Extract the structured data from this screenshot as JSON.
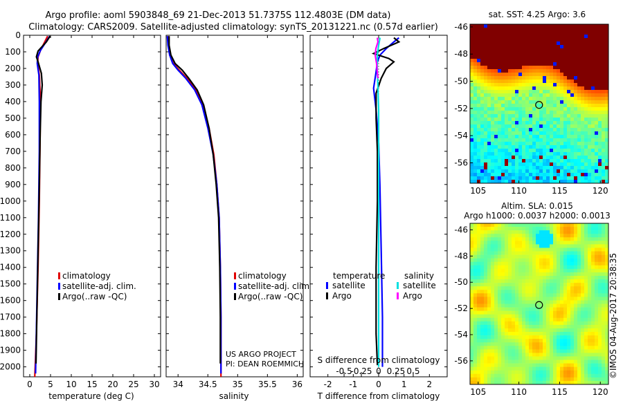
{
  "title_line1": "Argo profile: aoml 5903848_69 21-Dec-2013 51.7375S 112.4803E (DM data)",
  "title_line2": "Climatology: CARS2009. Satellite-adjusted climatology: synTS_20131221.nc (0.57d earlier)",
  "colors": {
    "climatology": "#e00000",
    "satellite": "#0000ff",
    "argo": "#000000",
    "satellite_s": "#00e0e0",
    "argo_s": "#ff00ff"
  },
  "chart_data": [
    {
      "type": "line",
      "id": "temperature",
      "xlabel": "temperature (deg C)",
      "xlim": [
        -1.5,
        31.5
      ],
      "ylim": [
        2060,
        0
      ],
      "xticks": [
        0,
        5,
        10,
        15,
        20,
        25,
        30
      ],
      "xtick_labels": [
        "0",
        "5",
        "10",
        "15",
        "20",
        "25",
        "30"
      ],
      "yticks": [
        0,
        100,
        200,
        300,
        400,
        500,
        600,
        700,
        800,
        900,
        1000,
        1100,
        1200,
        1300,
        1400,
        1500,
        1600,
        1700,
        1800,
        1900,
        2000
      ],
      "ytick_labels": [
        "0",
        "100",
        "200",
        "300",
        "400",
        "500",
        "600",
        "700",
        "800",
        "900",
        "1000",
        "1100",
        "1200",
        "1300",
        "1400",
        "1500",
        "1600",
        "1700",
        "1800",
        "1900",
        "2000"
      ],
      "legend": [
        "climatology",
        "satellite-adj. clim.",
        "Argo(..raw -QC)"
      ],
      "series": [
        {
          "name": "climatology",
          "color": "#e00000",
          "points": [
            [
              4.3,
              5
            ],
            [
              3.6,
              40
            ],
            [
              2.6,
              90
            ],
            [
              2.0,
              130
            ],
            [
              1.9,
              170
            ],
            [
              2.3,
              240
            ],
            [
              2.5,
              350
            ],
            [
              2.5,
              600
            ],
            [
              2.3,
              1000
            ],
            [
              2.0,
              1400
            ],
            [
              1.6,
              1800
            ],
            [
              1.3,
              2000
            ],
            [
              1.2,
              2060
            ]
          ]
        },
        {
          "name": "satellite-adj. clim.",
          "color": "#0000ff",
          "points": [
            [
              4.8,
              5
            ],
            [
              3.9,
              40
            ],
            [
              2.6,
              90
            ],
            [
              1.9,
              130
            ],
            [
              1.8,
              170
            ],
            [
              2.2,
              240
            ],
            [
              2.3,
              400
            ],
            [
              2.3,
              700
            ],
            [
              2.1,
              1100
            ],
            [
              1.8,
              1500
            ],
            [
              1.5,
              1900
            ],
            [
              1.4,
              2040
            ]
          ]
        },
        {
          "name": "Argo(..raw -QC)",
          "color": "#000000",
          "points": [
            [
              4.9,
              5
            ],
            [
              4.0,
              40
            ],
            [
              2.0,
              95
            ],
            [
              1.6,
              130
            ],
            [
              2.0,
              160
            ],
            [
              2.8,
              230
            ],
            [
              3.0,
              300
            ],
            [
              2.7,
              400
            ],
            [
              2.5,
              600
            ],
            [
              2.3,
              900
            ],
            [
              2.0,
              1300
            ],
            [
              1.7,
              1700
            ],
            [
              1.5,
              1980
            ]
          ]
        }
      ]
    },
    {
      "type": "line",
      "id": "salinity",
      "xlabel": "salinity",
      "xlim": [
        33.8,
        36.1
      ],
      "ylim": [
        2060,
        0
      ],
      "xticks": [
        34,
        34.5,
        35,
        35.5,
        36
      ],
      "xtick_labels": [
        "34",
        "34.5",
        "35",
        "35.5",
        "36"
      ],
      "legend": [
        "climatology",
        "satellite-adj. clim.",
        "Argo(..raw -QC)"
      ],
      "credit_line1": "US ARGO PROJECT",
      "credit_line2": "PI: DEAN ROEMMICH",
      "series": [
        {
          "name": "climatology",
          "color": "#e00000",
          "points": [
            [
              33.83,
              5
            ],
            [
              33.84,
              60
            ],
            [
              33.86,
              120
            ],
            [
              33.92,
              170
            ],
            [
              34.02,
              210
            ],
            [
              34.15,
              260
            ],
            [
              34.3,
              330
            ],
            [
              34.42,
              420
            ],
            [
              34.52,
              560
            ],
            [
              34.6,
              720
            ],
            [
              34.65,
              900
            ],
            [
              34.69,
              1100
            ],
            [
              34.71,
              1400
            ],
            [
              34.72,
              1700
            ],
            [
              34.72,
              2060
            ]
          ]
        },
        {
          "name": "satellite-adj. clim.",
          "color": "#0000ff",
          "points": [
            [
              33.82,
              5
            ],
            [
              33.83,
              60
            ],
            [
              33.86,
              120
            ],
            [
              33.91,
              170
            ],
            [
              34.0,
              210
            ],
            [
              34.13,
              260
            ],
            [
              34.28,
              330
            ],
            [
              34.4,
              420
            ],
            [
              34.5,
              560
            ],
            [
              34.59,
              720
            ],
            [
              34.65,
              900
            ],
            [
              34.69,
              1100
            ],
            [
              34.71,
              1400
            ],
            [
              34.72,
              1700
            ],
            [
              34.72,
              2040
            ]
          ]
        },
        {
          "name": "Argo(..raw -QC)",
          "color": "#000000",
          "points": [
            [
              33.85,
              5
            ],
            [
              33.85,
              60
            ],
            [
              33.88,
              120
            ],
            [
              33.95,
              170
            ],
            [
              34.07,
              210
            ],
            [
              34.18,
              260
            ],
            [
              34.32,
              330
            ],
            [
              34.43,
              420
            ],
            [
              34.52,
              560
            ],
            [
              34.59,
              720
            ],
            [
              34.64,
              900
            ],
            [
              34.68,
              1100
            ],
            [
              34.7,
              1400
            ],
            [
              34.71,
              1700
            ],
            [
              34.71,
              1980
            ]
          ]
        }
      ]
    },
    {
      "type": "line",
      "id": "differences",
      "xlabel": "T difference from climatology",
      "xlabel_top": "S difference from climatology",
      "xlim": [
        -2.7,
        2.7
      ],
      "ylim": [
        2060,
        0
      ],
      "xticks": [
        -2,
        -1,
        0,
        1,
        2
      ],
      "xtick_labels": [
        "-2",
        "-1",
        "0",
        "1",
        "2"
      ],
      "xticks_top_values": [
        -0.5,
        -0.25,
        0,
        0.25,
        0.5
      ],
      "xticks_top_labels": [
        "-0.5",
        "-0.25",
        "0",
        "0.25",
        "0.5"
      ],
      "legend_temperature_title": "temperature",
      "legend_salinity_title": "salinity",
      "legend_temperature": [
        "satellite",
        "Argo"
      ],
      "legend_salinity": [
        "satellite",
        "Argo"
      ],
      "series": [
        {
          "name": "T satellite",
          "color": "#0000ff",
          "points": [
            [
              0.8,
              15
            ],
            [
              0.6,
              40
            ],
            [
              0.3,
              80
            ],
            [
              0.05,
              120
            ],
            [
              -0.05,
              160
            ],
            [
              -0.1,
              220
            ],
            [
              -0.2,
              320
            ],
            [
              -0.1,
              450
            ],
            [
              0.0,
              650
            ],
            [
              0.05,
              900
            ],
            [
              0.1,
              1300
            ],
            [
              0.15,
              1700
            ],
            [
              0.15,
              2000
            ]
          ]
        },
        {
          "name": "T Argo",
          "color": "#000000",
          "points": [
            [
              0.6,
              15
            ],
            [
              0.8,
              40
            ],
            [
              0.2,
              80
            ],
            [
              -0.2,
              110
            ],
            [
              0.4,
              140
            ],
            [
              0.6,
              160
            ],
            [
              0.3,
              200
            ],
            [
              0.1,
              260
            ],
            [
              -0.1,
              350
            ],
            [
              -0.1,
              500
            ],
            [
              -0.05,
              700
            ],
            [
              -0.05,
              1000
            ],
            [
              -0.1,
              1400
            ],
            [
              -0.1,
              1800
            ],
            [
              -0.05,
              1990
            ]
          ]
        },
        {
          "name": "S satellite",
          "color": "#00e0e0",
          "points": [
            [
              0.02,
              15
            ],
            [
              0.0,
              60
            ],
            [
              -0.02,
              120
            ],
            [
              -0.02,
              200
            ],
            [
              -0.01,
              320
            ],
            [
              0.0,
              450
            ],
            [
              0.0,
              650
            ],
            [
              0.0,
              900
            ],
            [
              0.0,
              1300
            ],
            [
              0.0,
              1700
            ],
            [
              0.0,
              2000
            ]
          ]
        },
        {
          "name": "S Argo",
          "color": "#ff00ff",
          "points": [
            [
              -0.02,
              15
            ],
            [
              -0.01,
              40
            ],
            [
              -0.04,
              80
            ],
            [
              -0.05,
              120
            ],
            [
              -0.03,
              170
            ],
            [
              -0.02,
              220
            ],
            [
              -0.01,
              260
            ]
          ]
        }
      ]
    },
    {
      "type": "heatmap",
      "id": "sst_map",
      "title": "sat. SST: 4.25  Argo: 3.6",
      "xlim": [
        104,
        121
      ],
      "ylim": [
        -57.5,
        -45.8
      ],
      "xticks": [
        105,
        110,
        115,
        120
      ],
      "xtick_labels": [
        "105",
        "110",
        "115",
        "120"
      ],
      "yticks": [
        -46,
        -48,
        -50,
        -52,
        -54,
        -56
      ],
      "ytick_labels": [
        "-46",
        "-48",
        "-50",
        "-52",
        "-54",
        "-56"
      ],
      "marker": {
        "lon": 112.4803,
        "lat": -51.7375
      }
    },
    {
      "type": "heatmap",
      "id": "sla_map",
      "title_line1": "Altim. SLA: 0.015",
      "title_line2": "Argo h1000: 0.0037 h2000: 0.0013",
      "xlim": [
        104,
        121
      ],
      "ylim": [
        -57.8,
        -45.5
      ],
      "xticks": [
        105,
        110,
        115,
        120
      ],
      "xtick_labels": [
        "105",
        "110",
        "115",
        "120"
      ],
      "yticks": [
        -46,
        -48,
        -50,
        -52,
        -54,
        -56
      ],
      "ytick_labels": [
        "-46",
        "-48",
        "-50",
        "-52",
        "-54",
        "-56"
      ],
      "marker": {
        "lon": 112.4803,
        "lat": -51.7375
      }
    }
  ],
  "footer_stamp": "©IMOS 04-Aug-2017 20:38:35"
}
